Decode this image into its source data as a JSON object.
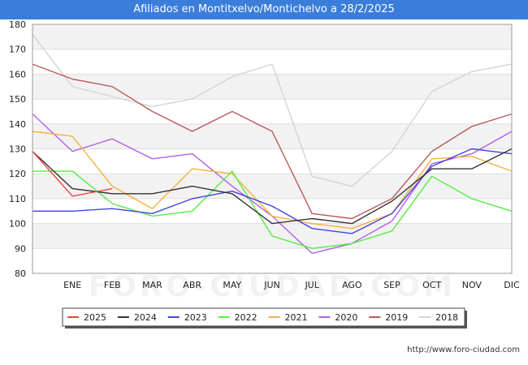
{
  "header": {
    "title": "Afiliados en Montitxelvo/Montichelvo a 28/2/2025"
  },
  "footer": {
    "url": "http://www.foro-ciudad.com"
  },
  "watermark": "FORO-CIUDAD.COM",
  "chart_data": {
    "type": "line",
    "title": "Afiliados en Montitxelvo/Montichelvo a 28/2/2025",
    "xlabel": "",
    "ylabel": "",
    "categories": [
      "",
      "ENE",
      "FEB",
      "MAR",
      "ABR",
      "MAY",
      "JUN",
      "JUL",
      "AGO",
      "SEP",
      "OCT",
      "NOV",
      "DIC"
    ],
    "ylim": [
      80,
      180
    ],
    "yticks": [
      80,
      90,
      100,
      110,
      120,
      130,
      140,
      150,
      160,
      170,
      180
    ],
    "grid": true,
    "legend_position": "bottom",
    "series": [
      {
        "name": "2025",
        "color": "#e8473c",
        "values": [
          129,
          111,
          114,
          null,
          null,
          null,
          null,
          null,
          null,
          null,
          null,
          null,
          null
        ]
      },
      {
        "name": "2024",
        "color": "#333333",
        "values": [
          129,
          114,
          112,
          112,
          115,
          112,
          100,
          102,
          100,
          109,
          122,
          122,
          130
        ]
      },
      {
        "name": "2023",
        "color": "#4444dd",
        "values": [
          105,
          105,
          106,
          104,
          110,
          113,
          107,
          98,
          96,
          104,
          123,
          130,
          128
        ]
      },
      {
        "name": "2022",
        "color": "#55ee44",
        "values": [
          121,
          121,
          108,
          103,
          105,
          121,
          95,
          90,
          92,
          97,
          119,
          110,
          105
        ]
      },
      {
        "name": "2021",
        "color": "#f5b13c",
        "values": [
          137,
          135,
          115,
          106,
          122,
          120,
          103,
          100,
          98,
          104,
          126,
          127,
          121
        ]
      },
      {
        "name": "2020",
        "color": "#b35ee9",
        "values": [
          144,
          129,
          134,
          126,
          128,
          115,
          103,
          88,
          92,
          101,
          124,
          128,
          137
        ]
      },
      {
        "name": "2019",
        "color": "#b85a5a",
        "values": [
          164,
          158,
          155,
          145,
          137,
          145,
          137,
          104,
          102,
          110,
          129,
          139,
          144
        ]
      },
      {
        "name": "2018",
        "color": "#d4d4d4",
        "values": [
          176,
          155,
          151,
          147,
          150,
          159,
          164,
          119,
          115,
          129,
          153,
          161,
          164
        ]
      }
    ]
  }
}
